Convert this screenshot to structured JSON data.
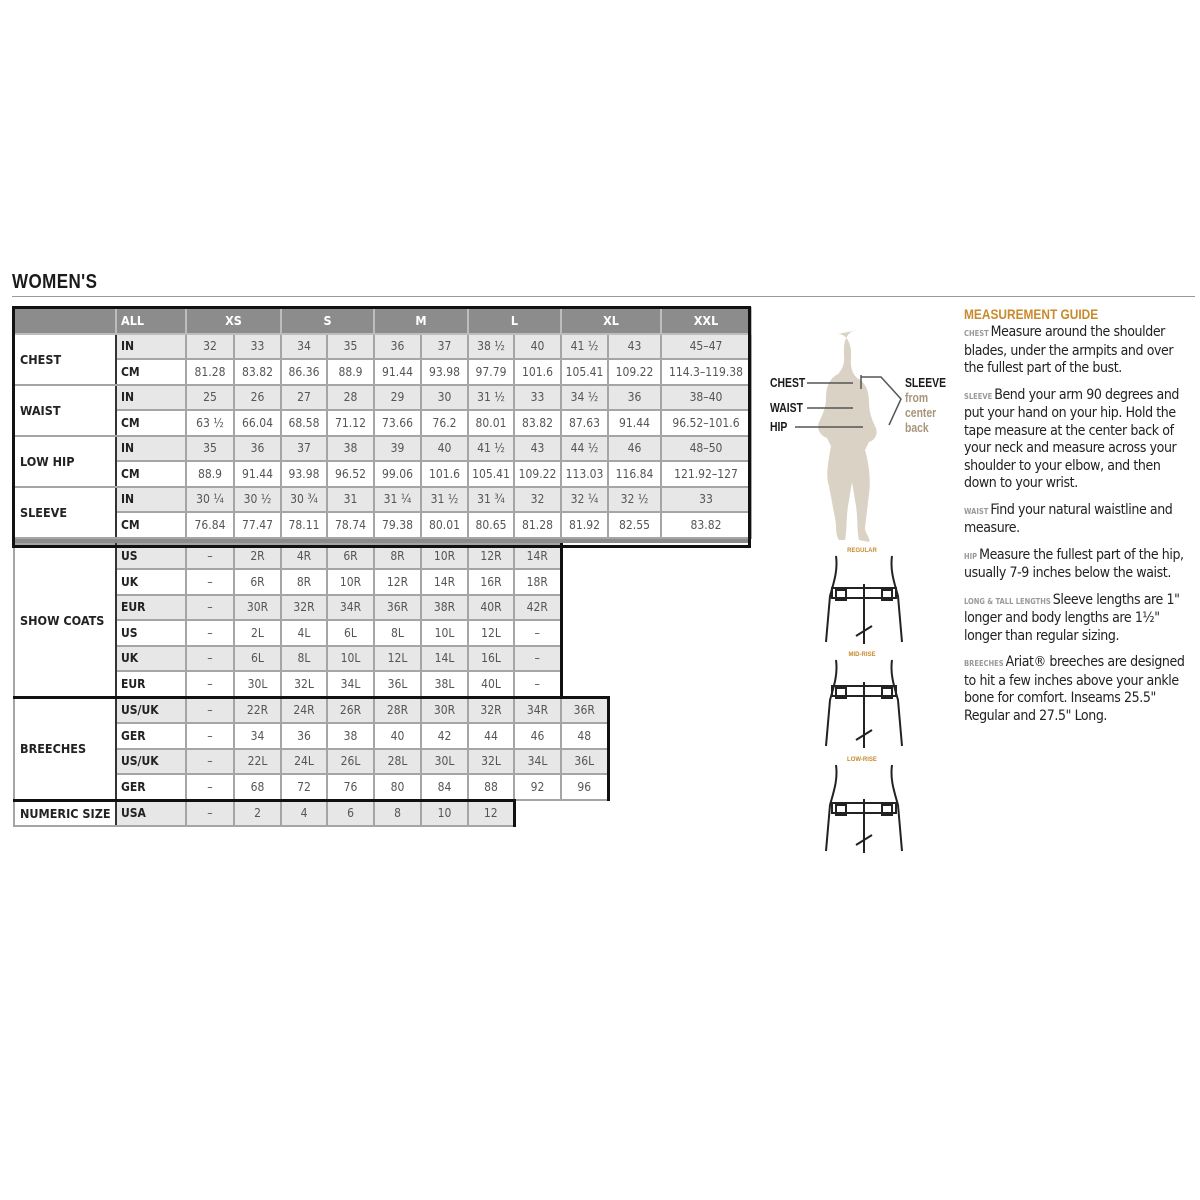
{
  "title": "WOMEN'S",
  "header": [
    "ALL",
    "XS",
    "S",
    "M",
    "L",
    "XL",
    "XXL"
  ],
  "measurements": [
    {
      "label": "CHEST",
      "rows": [
        {
          "unit": "IN",
          "values": [
            "32",
            "33",
            "34",
            "35",
            "36",
            "37",
            "38 ½",
            "40",
            "41 ½",
            "43",
            "45–47"
          ]
        },
        {
          "unit": "CM",
          "values": [
            "81.28",
            "83.82",
            "86.36",
            "88.9",
            "91.44",
            "93.98",
            "97.79",
            "101.6",
            "105.41",
            "109.22",
            "114.3–119.38"
          ]
        }
      ]
    },
    {
      "label": "WAIST",
      "rows": [
        {
          "unit": "IN",
          "values": [
            "25",
            "26",
            "27",
            "28",
            "29",
            "30",
            "31 ½",
            "33",
            "34 ½",
            "36",
            "38–40"
          ]
        },
        {
          "unit": "CM",
          "values": [
            "63 ½",
            "66.04",
            "68.58",
            "71.12",
            "73.66",
            "76.2",
            "80.01",
            "83.82",
            "87.63",
            "91.44",
            "96.52–101.6"
          ]
        }
      ]
    },
    {
      "label": "LOW HIP",
      "rows": [
        {
          "unit": "IN",
          "values": [
            "35",
            "36",
            "37",
            "38",
            "39",
            "40",
            "41 ½",
            "43",
            "44 ½",
            "46",
            "48–50"
          ]
        },
        {
          "unit": "CM",
          "values": [
            "88.9",
            "91.44",
            "93.98",
            "96.52",
            "99.06",
            "101.6",
            "105.41",
            "109.22",
            "113.03",
            "116.84",
            "121.92–127"
          ]
        }
      ]
    },
    {
      "label": "SLEEVE",
      "rows": [
        {
          "unit": "IN",
          "values": [
            "30 ¼",
            "30 ½",
            "30 ¾",
            "31",
            "31 ¼",
            "31 ½",
            "31 ¾",
            "32",
            "32 ¼",
            "32 ½",
            "33"
          ]
        },
        {
          "unit": "CM",
          "values": [
            "76.84",
            "77.47",
            "78.11",
            "78.74",
            "79.38",
            "80.01",
            "80.65",
            "81.28",
            "81.92",
            "82.55",
            "83.82"
          ]
        }
      ]
    }
  ],
  "conversions": [
    {
      "label": "SHOW COATS",
      "rows": [
        {
          "unit": "US",
          "values": [
            "–",
            "2R",
            "4R",
            "6R",
            "8R",
            "10R",
            "12R",
            "14R"
          ]
        },
        {
          "unit": "UK",
          "values": [
            "–",
            "6R",
            "8R",
            "10R",
            "12R",
            "14R",
            "16R",
            "18R"
          ]
        },
        {
          "unit": "EUR",
          "values": [
            "–",
            "30R",
            "32R",
            "34R",
            "36R",
            "38R",
            "40R",
            "42R"
          ]
        },
        {
          "unit": "US",
          "values": [
            "–",
            "2L",
            "4L",
            "6L",
            "8L",
            "10L",
            "12L",
            "–"
          ]
        },
        {
          "unit": "UK",
          "values": [
            "–",
            "6L",
            "8L",
            "10L",
            "12L",
            "14L",
            "16L",
            "–"
          ]
        },
        {
          "unit": "EUR",
          "values": [
            "–",
            "30L",
            "32L",
            "34L",
            "36L",
            "38L",
            "40L",
            "–"
          ]
        }
      ]
    },
    {
      "label": "BREECHES",
      "rows": [
        {
          "unit": "US/UK",
          "values": [
            "–",
            "22R",
            "24R",
            "26R",
            "28R",
            "30R",
            "32R",
            "34R",
            "36R"
          ]
        },
        {
          "unit": "GER",
          "values": [
            "–",
            "34",
            "36",
            "38",
            "40",
            "42",
            "44",
            "46",
            "48"
          ]
        },
        {
          "unit": "US/UK",
          "values": [
            "–",
            "22L",
            "24L",
            "26L",
            "28L",
            "30L",
            "32L",
            "34L",
            "36L"
          ]
        },
        {
          "unit": "GER",
          "values": [
            "–",
            "68",
            "72",
            "76",
            "80",
            "84",
            "88",
            "92",
            "96"
          ]
        }
      ]
    },
    {
      "label": "NUMERIC SIZE",
      "rows": [
        {
          "unit": "USA",
          "values": [
            "–",
            "2",
            "4",
            "6",
            "8",
            "10",
            "12"
          ]
        }
      ]
    }
  ],
  "figure": {
    "chest": "CHEST",
    "waist": "WAIST",
    "hip": "HIP",
    "sleeve": "SLEEVE",
    "sleeve_note": "from center back"
  },
  "rises": [
    "REGULAR",
    "MID-RISE",
    "LOW-RISE"
  ],
  "guide": {
    "title": "MEASUREMENT GUIDE",
    "items": [
      {
        "key": "CHEST",
        "text": "Measure around the shoulder blades, under the armpits and over the fullest part of the bust."
      },
      {
        "key": "SLEEVE",
        "text": "Bend your arm 90 degrees and put your hand on your hip. Hold the tape measure at the center back of your neck and measure across your shoulder to your elbow, and then down to your wrist."
      },
      {
        "key": "WAIST",
        "text": "Find your natural waistline and measure."
      },
      {
        "key": "HIP",
        "text": "Measure the fullest part of the hip, usually 7-9 inches below the waist."
      },
      {
        "key": "LONG & TALL LENGTHS",
        "text": "Sleeve lengths are 1\" longer and body lengths are 1½\" longer than regular sizing."
      },
      {
        "key": "BREECHES",
        "text": "Ariat® breeches are designed to hit a few inches above your ankle bone for comfort. Inseams 25.5\" Regular and 27.5\" Long."
      }
    ]
  },
  "colors": {
    "accent": "#c88a2c",
    "header_gray": "#8c8c8c",
    "shade": "#e7e7e7",
    "silhouette": "#d9d2c5"
  }
}
